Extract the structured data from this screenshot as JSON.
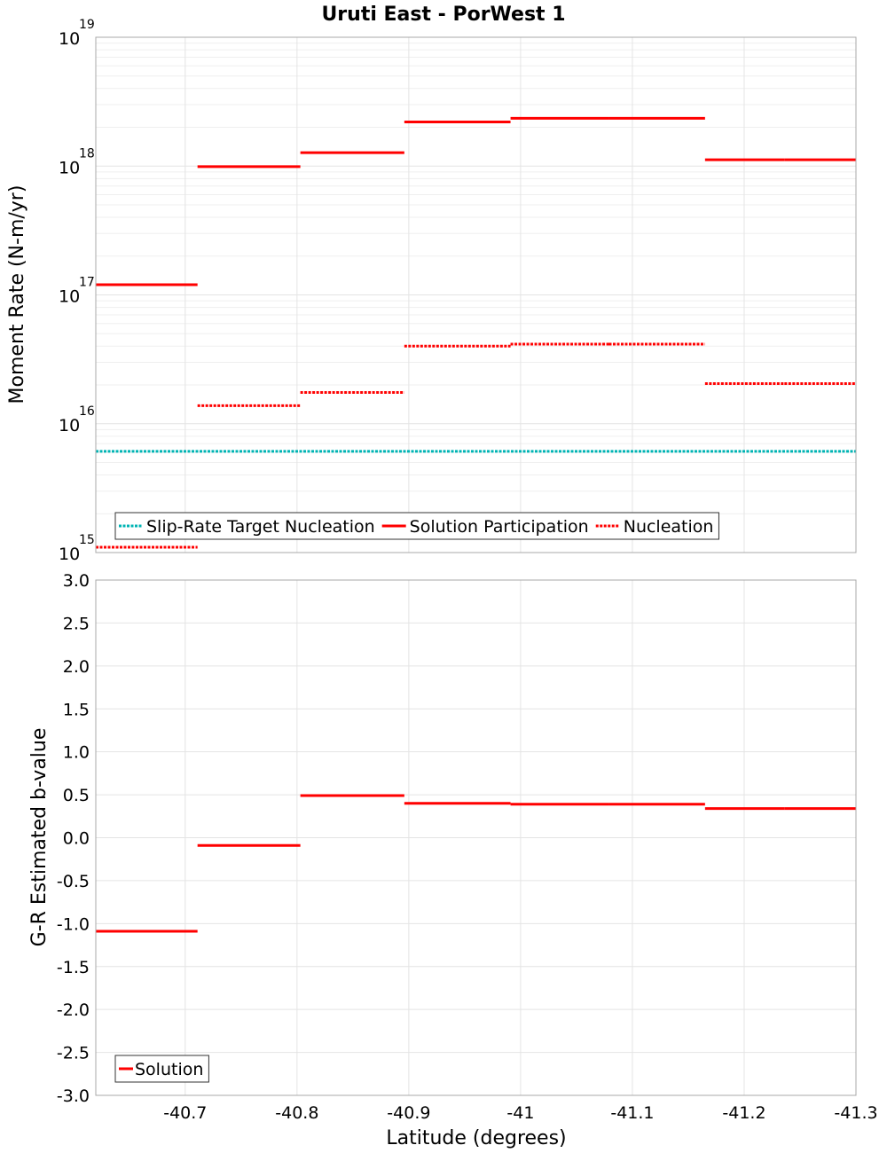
{
  "chart_data": [
    {
      "type": "line",
      "title": "Uruti East - PorWest 1",
      "ylabel": "Moment Rate (N-m/yr)",
      "yscale": "log",
      "ylim": [
        1000000000000000.0,
        1e+19
      ],
      "y_ticks": [
        {
          "base": "10",
          "exp": "15"
        },
        {
          "base": "10",
          "exp": "16"
        },
        {
          "base": "10",
          "exp": "17"
        },
        {
          "base": "10",
          "exp": "18"
        },
        {
          "base": "10",
          "exp": "19"
        }
      ],
      "xlim": [
        -40.62,
        -41.3
      ],
      "grid": true,
      "legend_position": "bottom-left",
      "series": [
        {
          "name": "Slip-Rate Target Nucleation",
          "color": "#00b4b4",
          "style": "dotted",
          "segments": [
            [
              -40.62,
              -41.3,
              6100000000000000.0
            ]
          ]
        },
        {
          "name": "Solution Participation",
          "color": "#ff0000",
          "style": "solid",
          "segments": [
            [
              -40.62,
              -40.711,
              1.2e+17
            ],
            [
              -40.711,
              -40.803,
              9.9e+17
            ],
            [
              -40.803,
              -40.896,
              1.27e+18
            ],
            [
              -40.896,
              -40.991,
              2.2e+18
            ],
            [
              -40.991,
              -41.079,
              2.35e+18
            ],
            [
              -41.079,
              -41.165,
              2.35e+18
            ],
            [
              -41.165,
              -41.236,
              1.12e+18
            ],
            [
              -41.236,
              -41.3,
              1.12e+18
            ]
          ]
        },
        {
          "name": "Nucleation",
          "color": "#ff0000",
          "style": "dotted",
          "segments": [
            [
              -40.62,
              -40.711,
              1100000000000000.0
            ],
            [
              -40.711,
              -40.803,
              1.38e+16
            ],
            [
              -40.803,
              -40.896,
              1.75e+16
            ],
            [
              -40.896,
              -40.991,
              4e+16
            ],
            [
              -40.991,
              -41.079,
              4.15e+16
            ],
            [
              -41.079,
              -41.165,
              4.15e+16
            ],
            [
              -41.165,
              -41.236,
              2.05e+16
            ],
            [
              -41.236,
              -41.3,
              2.05e+16
            ]
          ]
        }
      ]
    },
    {
      "type": "line",
      "xlabel": "Latitude (degrees)",
      "ylabel": "G-R Estimated b-value",
      "ylim": [
        -3.0,
        3.0
      ],
      "y_ticks": [
        "-3.0",
        "-2.5",
        "-2.0",
        "-1.5",
        "-1.0",
        "-0.5",
        "0.0",
        "0.5",
        "1.0",
        "1.5",
        "2.0",
        "2.5",
        "3.0"
      ],
      "xlim": [
        -40.62,
        -41.3
      ],
      "x_ticks": [
        {
          "value": -40.7,
          "label": "-40.7"
        },
        {
          "value": -40.8,
          "label": "-40.8"
        },
        {
          "value": -40.9,
          "label": "-40.9"
        },
        {
          "value": -41.0,
          "label": "-41"
        },
        {
          "value": -41.1,
          "label": "-41.1"
        },
        {
          "value": -41.2,
          "label": "-41.2"
        },
        {
          "value": -41.3,
          "label": "-41.3"
        }
      ],
      "grid": true,
      "legend_position": "bottom-left",
      "series": [
        {
          "name": "Solution",
          "color": "#ff0000",
          "style": "solid",
          "segments": [
            [
              -40.62,
              -40.711,
              -1.09
            ],
            [
              -40.711,
              -40.803,
              -0.09
            ],
            [
              -40.803,
              -40.896,
              0.49
            ],
            [
              -40.896,
              -40.991,
              0.4
            ],
            [
              -40.991,
              -41.079,
              0.39
            ],
            [
              -41.079,
              -41.165,
              0.39
            ],
            [
              -41.165,
              -41.236,
              0.34
            ],
            [
              -41.236,
              -41.3,
              0.34
            ]
          ]
        }
      ]
    }
  ]
}
